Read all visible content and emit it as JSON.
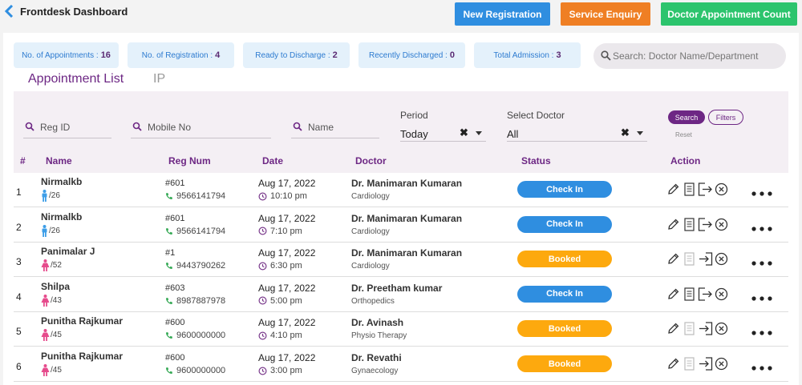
{
  "header": {
    "title": "Frontdesk Dashboard",
    "buttons": {
      "new_registration": "New Registration",
      "service_enquiry": "Service Enquiry",
      "doctor_appointment_count": "Doctor Appointment Count"
    }
  },
  "stats": [
    {
      "label": "No. of Appointments :",
      "value": "16"
    },
    {
      "label": "No. of Registration :",
      "value": "4"
    },
    {
      "label": "Ready to Discharge :",
      "value": "2"
    },
    {
      "label": "Recently Discharged :",
      "value": "0"
    },
    {
      "label": "Total Admission :",
      "value": "3"
    }
  ],
  "search": {
    "placeholder": "Search: Doctor Name/Department"
  },
  "tabs": {
    "appointment_list": "Appointment List",
    "ip": "IP"
  },
  "filters": {
    "reg_id": "Reg ID",
    "mobile_no": "Mobile No",
    "name": "Name",
    "period_label": "Period",
    "period_value": "Today",
    "doctor_label": "Select Doctor",
    "doctor_value": "All",
    "clear": "✖",
    "search_btn": "Search",
    "filters_btn": "Filters",
    "reset": "Reset"
  },
  "table": {
    "columns": {
      "num": "#",
      "name": "Name",
      "reg": "Reg Num",
      "date": "Date",
      "doctor": "Doctor",
      "status": "Status",
      "action": "Action"
    },
    "rows": [
      {
        "num": "1",
        "name": "Nirmalkb",
        "gender": "male",
        "age": "/26",
        "reg": "#601",
        "phone": "9566141794",
        "date": "Aug 17, 2022",
        "time": "10:10 pm",
        "doctor": "Dr. Manimaran Kumaran",
        "dept": "Cardiology",
        "status": "Check In",
        "status_type": "in"
      },
      {
        "num": "2",
        "name": "Nirmalkb",
        "gender": "male",
        "age": "/26",
        "reg": "#601",
        "phone": "9566141794",
        "date": "Aug 17, 2022",
        "time": "7:10 pm",
        "doctor": "Dr. Manimaran Kumaran",
        "dept": "Cardiology",
        "status": "Check In",
        "status_type": "in"
      },
      {
        "num": "3",
        "name": "Panimalar J",
        "gender": "female",
        "age": "/52",
        "reg": "#1",
        "phone": "9443790262",
        "date": "Aug 17, 2022",
        "time": "6:30 pm",
        "doctor": "Dr. Manimaran Kumaran",
        "dept": "Cardiology",
        "status": "Booked",
        "status_type": "booked"
      },
      {
        "num": "4",
        "name": "Shilpa",
        "gender": "female",
        "age": "/43",
        "reg": "#603",
        "phone": "8987887978",
        "date": "Aug 17, 2022",
        "time": "5:00 pm",
        "doctor": "Dr. Preetham kumar",
        "dept": "Orthopedics",
        "status": "Check In",
        "status_type": "in"
      },
      {
        "num": "5",
        "name": "Punitha Rajkumar",
        "gender": "female",
        "age": "/45",
        "reg": "#600",
        "phone": "9600000000",
        "date": "Aug 17, 2022",
        "time": "4:10 pm",
        "doctor": "Dr. Avinash",
        "dept": "Physio Therapy",
        "status": "Booked",
        "status_type": "booked"
      },
      {
        "num": "6",
        "name": "Punitha Rajkumar",
        "gender": "female",
        "age": "/45",
        "reg": "#600",
        "phone": "9600000000",
        "date": "Aug 17, 2022",
        "time": "3:00 pm",
        "doctor": "Dr. Revathi",
        "dept": "Gynaecology",
        "status": "Booked",
        "status_type": "booked"
      }
    ]
  },
  "colors": {
    "accent": "#6d2784",
    "blue": "#2f8ee0",
    "orange": "#ef7f24",
    "green": "#2cc46d",
    "booked": "#fda90e"
  }
}
